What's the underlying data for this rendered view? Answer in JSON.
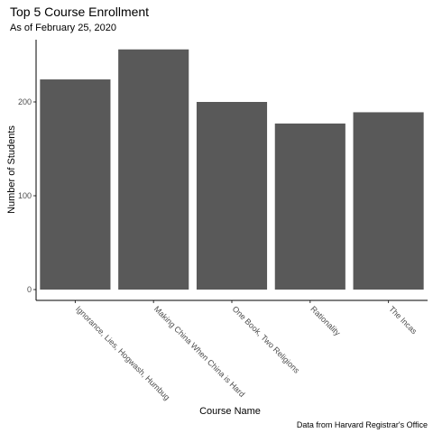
{
  "chart_data": {
    "type": "bar",
    "title": "Top 5 Course Enrollment",
    "subtitle": "As of February 25, 2020",
    "xlabel": "Course Name",
    "ylabel": "Number of Students",
    "caption": "Data from Harvard Registrar's Office",
    "categories": [
      "Ignorance, Lies, Hogwash, Humbug",
      "Making China When China is Hard",
      "One Book, Two Religions",
      "Rationality",
      "The Incas"
    ],
    "values": [
      224,
      256,
      200,
      177,
      189
    ],
    "yticks": [
      0,
      100,
      200
    ],
    "ylim": [
      0,
      268
    ],
    "bar_color": "#595959",
    "grid": false,
    "legend": "none"
  }
}
